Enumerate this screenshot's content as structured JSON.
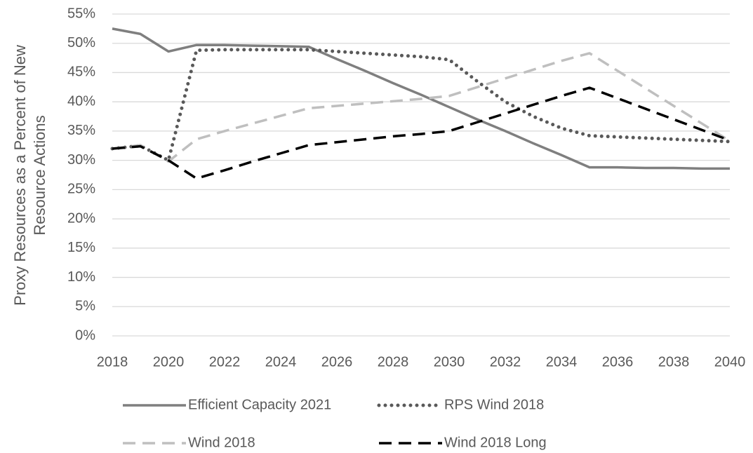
{
  "chart_data": {
    "type": "line",
    "ylabel": [
      "Proxy Resources as a Percent of New",
      "Resource Actions"
    ],
    "x": [
      2018,
      2019,
      2020,
      2021,
      2022,
      2023,
      2024,
      2025,
      2026,
      2027,
      2028,
      2029,
      2030,
      2031,
      2032,
      2033,
      2034,
      2035,
      2036,
      2037,
      2038,
      2039,
      2040
    ],
    "xlim": [
      2018,
      2040
    ],
    "xticks": [
      2018,
      2020,
      2022,
      2024,
      2026,
      2028,
      2030,
      2032,
      2034,
      2036,
      2038,
      2040
    ],
    "ylim": [
      0,
      55
    ],
    "yticks": [
      {
        "value": 0,
        "label": "0%"
      },
      {
        "value": 5,
        "label": "5%"
      },
      {
        "value": 10,
        "label": "10%"
      },
      {
        "value": 15,
        "label": "15%"
      },
      {
        "value": 20,
        "label": "20%"
      },
      {
        "value": 25,
        "label": "25%"
      },
      {
        "value": 30,
        "label": "30%"
      },
      {
        "value": 35,
        "label": "35%"
      },
      {
        "value": 40,
        "label": "40%"
      },
      {
        "value": 45,
        "label": "45%"
      },
      {
        "value": 50,
        "label": "50%"
      },
      {
        "value": 55,
        "label": "55%"
      }
    ],
    "grid": true,
    "legend": "bottom",
    "series": [
      {
        "name": "Efficient Capacity 2021",
        "color": "#7f7f7f",
        "style": "solid",
        "values": [
          52.5,
          51.6,
          48.6,
          49.7,
          49.7,
          49.6,
          49.5,
          49.4,
          47.3,
          45.3,
          43.2,
          41.2,
          39.1,
          37.0,
          35.0,
          32.9,
          30.9,
          28.8,
          28.8,
          28.7,
          28.7,
          28.6,
          28.6
        ]
      },
      {
        "name": "RPS Wind 2018",
        "color": "#595959",
        "style": "dotted",
        "values": [
          32.0,
          32.5,
          30.0,
          48.8,
          48.9,
          48.9,
          48.9,
          48.9,
          48.6,
          48.3,
          48.0,
          47.7,
          47.2,
          43.5,
          40.0,
          37.5,
          35.5,
          34.2,
          34.0,
          33.8,
          33.6,
          33.4,
          33.2
        ]
      },
      {
        "name": "Wind 2018",
        "color": "#bfbfbf",
        "style": "dashed",
        "values": [
          32.0,
          32.6,
          29.8,
          33.6,
          35.0,
          36.3,
          37.6,
          38.9,
          39.3,
          39.7,
          40.1,
          40.5,
          41.0,
          42.5,
          44.0,
          45.5,
          47.0,
          48.3,
          45.3,
          42.3,
          39.3,
          36.3,
          33.3
        ]
      },
      {
        "name": "Wind 2018 Long",
        "color": "#000000",
        "style": "dashed",
        "values": [
          32.0,
          32.4,
          30.0,
          26.9,
          28.3,
          29.8,
          31.2,
          32.6,
          33.1,
          33.6,
          34.1,
          34.5,
          35.0,
          36.5,
          38.0,
          39.5,
          41.0,
          42.4,
          40.6,
          38.8,
          37.0,
          35.2,
          33.4
        ]
      }
    ]
  }
}
